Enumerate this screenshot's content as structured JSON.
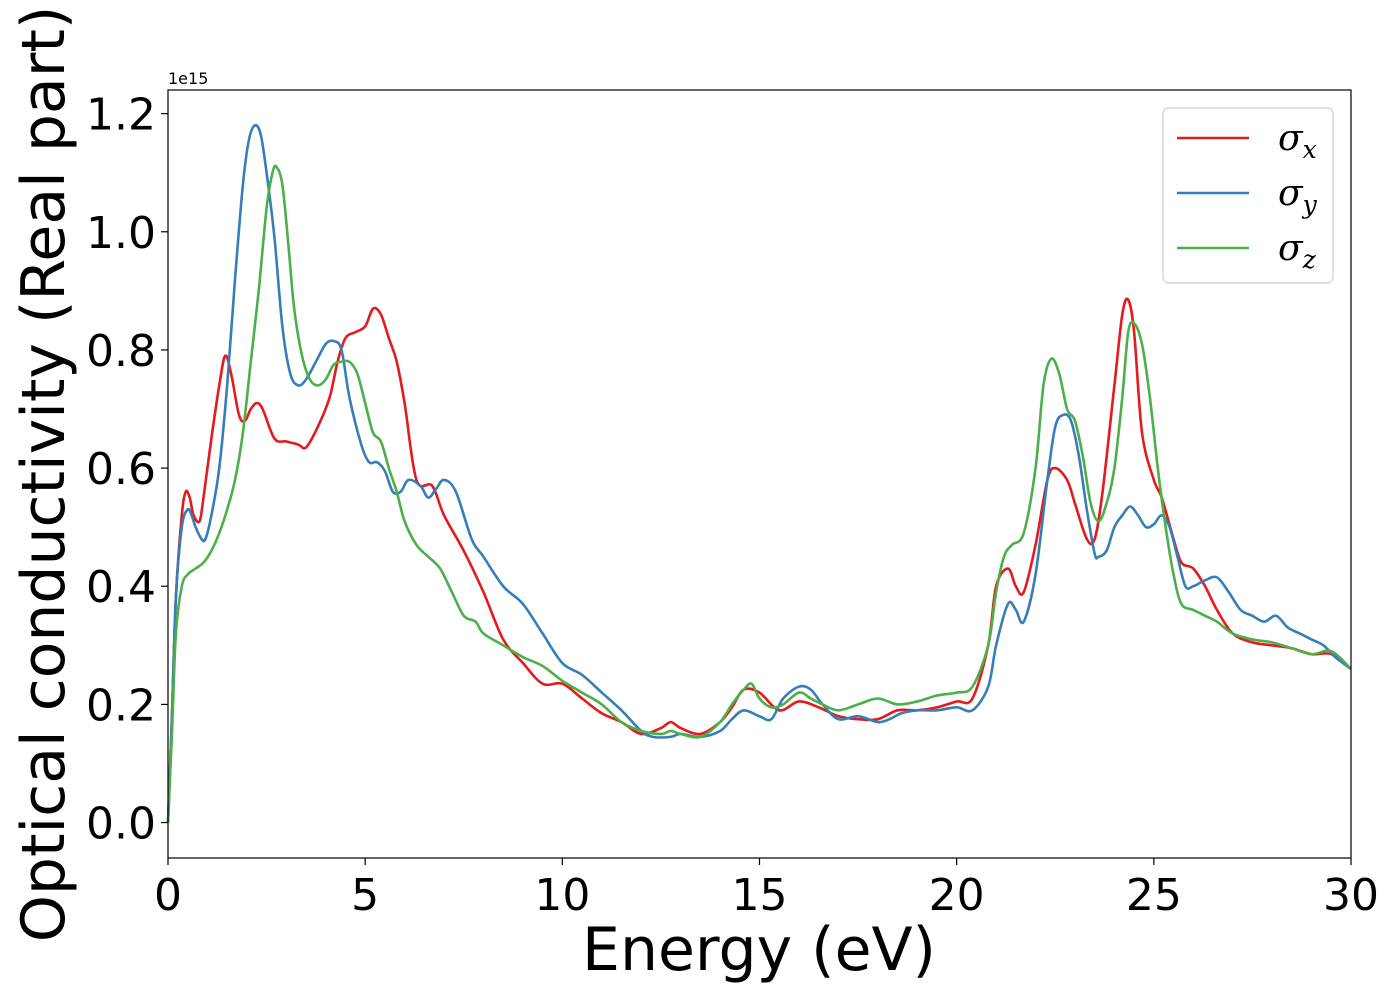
{
  "chart_data": {
    "type": "line",
    "title": "",
    "xlabel": "Energy (eV)",
    "ylabel": "Optical conductivity (Real part)",
    "y_offset_label": "1e15",
    "xlim": [
      0,
      30
    ],
    "ylim": [
      -0.06,
      1.24
    ],
    "xticks": [
      0,
      5,
      10,
      15,
      20,
      25,
      30
    ],
    "xtick_labels": [
      "0",
      "5",
      "10",
      "15",
      "20",
      "25",
      "30"
    ],
    "yticks": [
      0.0,
      0.2,
      0.4,
      0.6,
      0.8,
      1.0,
      1.2
    ],
    "ytick_labels": [
      "0.0",
      "0.2",
      "0.4",
      "0.6",
      "0.8",
      "1.0",
      "1.2"
    ],
    "grid": false,
    "legend_position": "top-right",
    "series": [
      {
        "name": "x",
        "legend_symbol": "σ",
        "legend_subscript": "x",
        "color": "#e41a1c",
        "x": [
          0,
          0.1,
          0.2,
          0.35,
          0.45,
          0.55,
          0.65,
          0.8,
          0.9,
          1.1,
          1.3,
          1.45,
          1.6,
          1.8,
          1.95,
          2.1,
          2.25,
          2.4,
          2.7,
          3.0,
          3.3,
          3.5,
          3.8,
          4.1,
          4.3,
          4.5,
          4.75,
          5.0,
          5.2,
          5.4,
          5.6,
          5.8,
          6.0,
          6.3,
          6.7,
          7.0,
          7.5,
          8.0,
          8.5,
          9.0,
          9.5,
          10.0,
          10.5,
          11.0,
          11.5,
          12.0,
          12.5,
          12.75,
          13.0,
          13.5,
          14.0,
          14.3,
          14.6,
          15.0,
          15.5,
          16.0,
          16.5,
          17.0,
          17.5,
          18.0,
          18.5,
          19.0,
          19.5,
          20.0,
          20.4,
          20.8,
          21.0,
          21.3,
          21.5,
          21.7,
          22.0,
          22.3,
          22.5,
          22.8,
          23.0,
          23.3,
          23.5,
          23.7,
          24.0,
          24.2,
          24.35,
          24.5,
          24.7,
          25.0,
          25.2,
          25.5,
          25.7,
          26.0,
          26.3,
          26.6,
          27.0,
          27.5,
          28.0,
          28.5,
          29.0,
          29.5,
          30.0
        ],
        "values": [
          0.0,
          0.18,
          0.38,
          0.52,
          0.56,
          0.55,
          0.52,
          0.51,
          0.55,
          0.65,
          0.74,
          0.79,
          0.76,
          0.69,
          0.68,
          0.7,
          0.71,
          0.7,
          0.65,
          0.645,
          0.64,
          0.635,
          0.67,
          0.72,
          0.78,
          0.82,
          0.83,
          0.84,
          0.87,
          0.86,
          0.82,
          0.78,
          0.71,
          0.58,
          0.57,
          0.52,
          0.46,
          0.39,
          0.31,
          0.27,
          0.235,
          0.235,
          0.21,
          0.185,
          0.17,
          0.15,
          0.16,
          0.17,
          0.16,
          0.15,
          0.17,
          0.195,
          0.225,
          0.22,
          0.19,
          0.205,
          0.195,
          0.18,
          0.175,
          0.175,
          0.19,
          0.19,
          0.195,
          0.205,
          0.21,
          0.3,
          0.4,
          0.43,
          0.4,
          0.39,
          0.47,
          0.58,
          0.6,
          0.58,
          0.54,
          0.48,
          0.48,
          0.56,
          0.74,
          0.86,
          0.885,
          0.83,
          0.66,
          0.58,
          0.55,
          0.48,
          0.44,
          0.43,
          0.4,
          0.36,
          0.32,
          0.305,
          0.3,
          0.295,
          0.285,
          0.285,
          0.26
        ]
      },
      {
        "name": "y",
        "legend_symbol": "σ",
        "legend_subscript": "y",
        "color": "#377eb8",
        "x": [
          0,
          0.1,
          0.2,
          0.35,
          0.5,
          0.6,
          0.7,
          0.85,
          0.95,
          1.1,
          1.3,
          1.5,
          1.7,
          1.9,
          2.05,
          2.2,
          2.35,
          2.5,
          2.7,
          2.9,
          3.1,
          3.3,
          3.5,
          3.75,
          4.0,
          4.2,
          4.4,
          4.6,
          4.9,
          5.1,
          5.3,
          5.5,
          5.7,
          5.9,
          6.1,
          6.4,
          6.6,
          6.8,
          7.0,
          7.3,
          7.7,
          8.0,
          8.5,
          9.0,
          9.5,
          10.0,
          10.5,
          11.0,
          11.5,
          12.0,
          12.3,
          12.75,
          13.0,
          13.5,
          14.0,
          14.3,
          14.6,
          15.0,
          15.3,
          15.6,
          16.0,
          16.3,
          16.6,
          17.0,
          17.5,
          18.0,
          18.3,
          18.6,
          19.0,
          19.5,
          20.0,
          20.4,
          20.8,
          21.0,
          21.3,
          21.5,
          21.7,
          22.0,
          22.3,
          22.5,
          22.7,
          22.9,
          23.1,
          23.3,
          23.5,
          23.6,
          23.8,
          24.0,
          24.2,
          24.4,
          24.6,
          24.8,
          25.0,
          25.2,
          25.4,
          25.6,
          25.8,
          26.0,
          26.3,
          26.6,
          26.9,
          27.2,
          27.5,
          27.8,
          28.1,
          28.4,
          28.7,
          29.0,
          29.3,
          29.6,
          30.0
        ],
        "values": [
          0.0,
          0.18,
          0.38,
          0.5,
          0.53,
          0.52,
          0.5,
          0.48,
          0.48,
          0.52,
          0.6,
          0.74,
          0.92,
          1.08,
          1.155,
          1.18,
          1.165,
          1.1,
          0.99,
          0.84,
          0.76,
          0.74,
          0.75,
          0.78,
          0.81,
          0.815,
          0.8,
          0.72,
          0.64,
          0.61,
          0.61,
          0.595,
          0.56,
          0.56,
          0.58,
          0.57,
          0.55,
          0.565,
          0.58,
          0.56,
          0.48,
          0.45,
          0.4,
          0.37,
          0.32,
          0.27,
          0.25,
          0.22,
          0.19,
          0.155,
          0.145,
          0.145,
          0.15,
          0.145,
          0.155,
          0.175,
          0.19,
          0.18,
          0.175,
          0.21,
          0.23,
          0.225,
          0.2,
          0.175,
          0.18,
          0.17,
          0.175,
          0.185,
          0.19,
          0.19,
          0.195,
          0.19,
          0.23,
          0.3,
          0.37,
          0.36,
          0.34,
          0.42,
          0.58,
          0.67,
          0.69,
          0.68,
          0.62,
          0.53,
          0.455,
          0.45,
          0.46,
          0.5,
          0.52,
          0.535,
          0.52,
          0.5,
          0.505,
          0.52,
          0.5,
          0.45,
          0.4,
          0.4,
          0.41,
          0.415,
          0.39,
          0.36,
          0.35,
          0.34,
          0.35,
          0.33,
          0.32,
          0.31,
          0.3,
          0.28,
          0.26
        ]
      },
      {
        "name": "z",
        "legend_symbol": "σ",
        "legend_subscript": "z",
        "color": "#4daf4a",
        "x": [
          0,
          0.1,
          0.2,
          0.35,
          0.5,
          0.7,
          0.9,
          1.1,
          1.3,
          1.5,
          1.7,
          1.9,
          2.1,
          2.3,
          2.5,
          2.65,
          2.75,
          2.9,
          3.05,
          3.2,
          3.4,
          3.6,
          3.8,
          4.0,
          4.2,
          4.4,
          4.6,
          4.8,
          5.0,
          5.2,
          5.4,
          5.6,
          5.8,
          6.0,
          6.3,
          6.6,
          6.9,
          7.2,
          7.5,
          7.8,
          8.0,
          8.5,
          9.0,
          9.5,
          10.0,
          10.5,
          11.0,
          11.5,
          12.0,
          12.5,
          12.75,
          13.0,
          13.5,
          14.0,
          14.3,
          14.6,
          14.8,
          15.0,
          15.3,
          15.6,
          16.0,
          16.3,
          16.6,
          17.0,
          17.5,
          18.0,
          18.5,
          19.0,
          19.5,
          20.0,
          20.4,
          20.8,
          21.0,
          21.2,
          21.4,
          21.7,
          22.0,
          22.2,
          22.4,
          22.6,
          22.8,
          23.0,
          23.2,
          23.4,
          23.6,
          23.8,
          24.0,
          24.2,
          24.35,
          24.5,
          24.7,
          24.9,
          25.1,
          25.3,
          25.5,
          25.7,
          26.0,
          26.3,
          26.6,
          27.0,
          27.5,
          28.0,
          28.5,
          29.0,
          29.5,
          30.0
        ],
        "values": [
          0.0,
          0.15,
          0.32,
          0.4,
          0.42,
          0.43,
          0.44,
          0.46,
          0.49,
          0.53,
          0.58,
          0.66,
          0.78,
          0.9,
          1.04,
          1.1,
          1.11,
          1.08,
          0.98,
          0.87,
          0.79,
          0.75,
          0.74,
          0.75,
          0.775,
          0.78,
          0.78,
          0.76,
          0.71,
          0.66,
          0.645,
          0.6,
          0.56,
          0.51,
          0.47,
          0.45,
          0.43,
          0.39,
          0.35,
          0.34,
          0.32,
          0.3,
          0.28,
          0.265,
          0.24,
          0.22,
          0.2,
          0.17,
          0.155,
          0.15,
          0.155,
          0.15,
          0.145,
          0.17,
          0.2,
          0.225,
          0.235,
          0.21,
          0.195,
          0.2,
          0.22,
          0.21,
          0.2,
          0.19,
          0.2,
          0.21,
          0.2,
          0.205,
          0.215,
          0.22,
          0.23,
          0.3,
          0.39,
          0.45,
          0.47,
          0.49,
          0.6,
          0.74,
          0.785,
          0.76,
          0.7,
          0.68,
          0.62,
          0.54,
          0.51,
          0.54,
          0.6,
          0.72,
          0.83,
          0.845,
          0.81,
          0.72,
          0.6,
          0.5,
          0.42,
          0.37,
          0.36,
          0.35,
          0.34,
          0.32,
          0.31,
          0.305,
          0.295,
          0.285,
          0.29,
          0.26
        ]
      }
    ]
  }
}
